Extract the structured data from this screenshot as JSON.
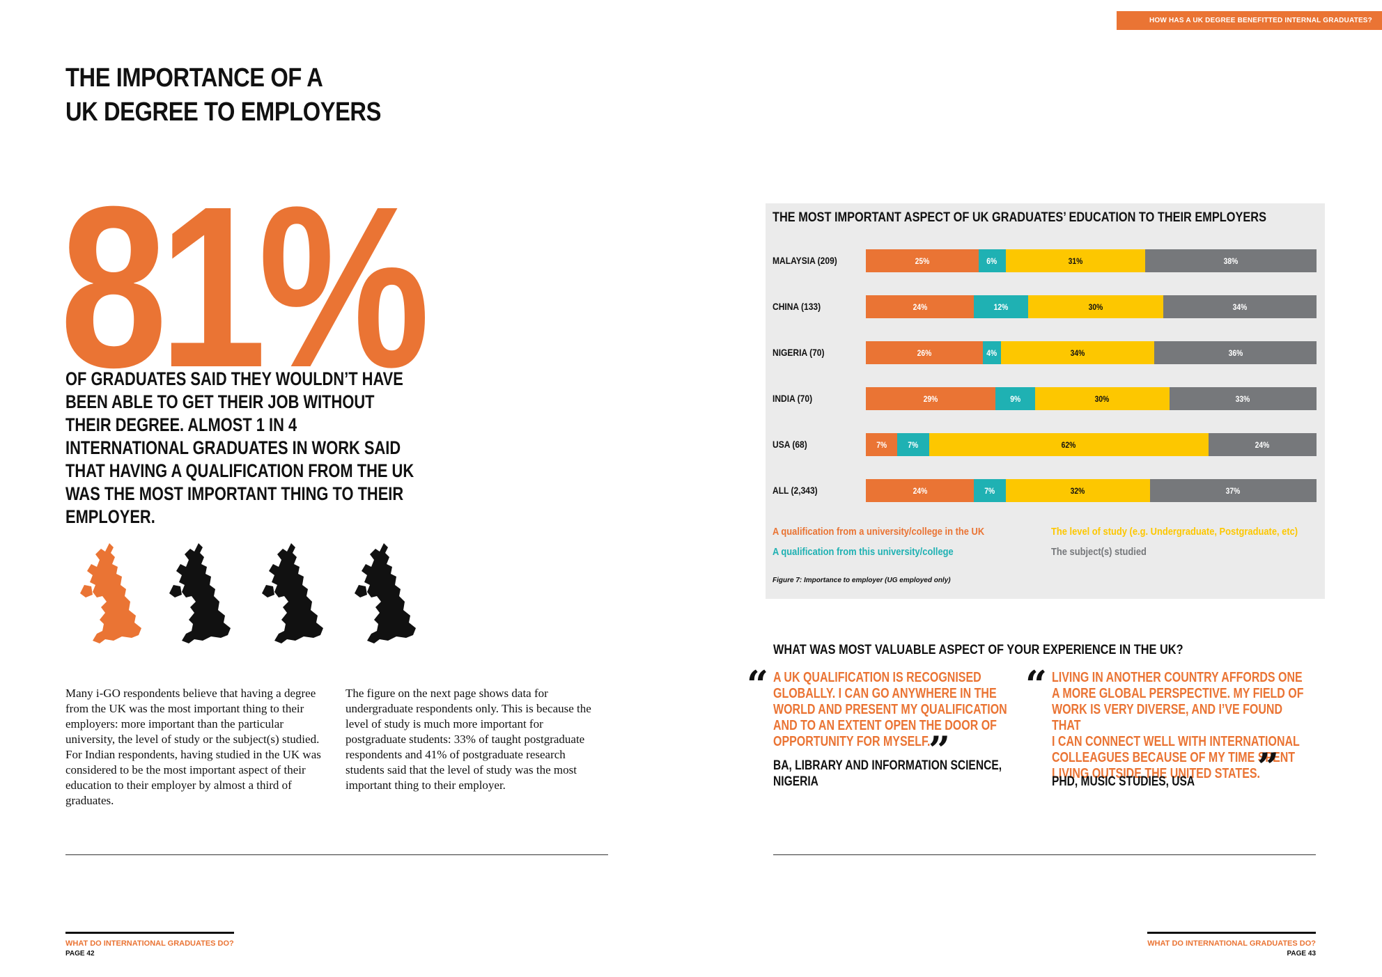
{
  "header": {
    "tab_label": "HOW HAS A UK DEGREE BENEFITTED INTERNAL GRADUATES?"
  },
  "left_page": {
    "title_line1": "THE IMPORTANCE OF A",
    "title_line2": "UK DEGREE TO EMPLOYERS",
    "stat_value": "81%",
    "stat_text": "OF GRADUATES SAID THEY WOULDN’T HAVE BEEN ABLE TO GET THEIR JOB WITHOUT THEIR DEGREE. ALMOST 1 IN 4 INTERNATIONAL GRADUATES IN WORK SAID THAT HAVING A QUALIFICATION FROM THE UK WAS THE MOST IMPORTANT THING TO THEIR EMPLOYER.",
    "maps": {
      "total": 4,
      "highlighted": 1,
      "highlight_color": "#ea7434",
      "base_color": "#111111"
    },
    "body_col1": "Many i-GO respondents believe that having a degree from the UK was the most important thing to their employers: more important than the particular university, the level of study or the subject(s) studied. For Indian respondents, having studied in the UK was considered to be the most important aspect of their education to their employer by almost a third of graduates.",
    "body_col2": "The figure on the next page shows data for undergraduate respondents only. This is because the level of study is much more important for postgraduate students: 33% of taught postgraduate respondents and 41% of postgraduate research students said that the level of study was the most important thing to their employer.",
    "footer_title": "WHAT DO INTERNATIONAL GRADUATES DO?",
    "footer_page": "PAGE 42"
  },
  "right_page": {
    "quotes_title": "WHAT WAS MOST VALUABLE ASPECT OF YOUR EXPERIENCE IN THE UK?",
    "quote1": {
      "lines": [
        "A UK QUALIFICATION IS RECOGNISED",
        "GLOBALLY. I CAN GO ANYWHERE IN THE",
        "WORLD AND PRESENT MY QUALIFICATION",
        "AND TO AN EXTENT OPEN THE DOOR OF",
        "OPPORTUNITY FOR MYSELF."
      ],
      "source_line1": "BA, LIBRARY AND INFORMATION SCIENCE,",
      "source_line2": "NIGERIA"
    },
    "quote2": {
      "lines": [
        "LIVING IN ANOTHER COUNTRY AFFORDS ONE",
        "A MORE GLOBAL PERSPECTIVE. MY FIELD OF",
        "WORK IS VERY DIVERSE, AND I’VE FOUND THAT",
        "I CAN CONNECT WELL WITH INTERNATIONAL",
        "COLLEAGUES BECAUSE OF MY TIME SPENT",
        "LIVING OUTSIDE THE UNITED STATES."
      ],
      "source_line1": "PHD, MUSIC STUDIES, USA"
    },
    "footer_title": "WHAT DO INTERNATIONAL GRADUATES DO?",
    "footer_page": "PAGE 43"
  },
  "chart_data": {
    "type": "bar",
    "stacked": true,
    "orientation": "horizontal",
    "title": "THE MOST IMPORTANT ASPECT OF UK GRADUATES’ EDUCATION TO THEIR EMPLOYERS",
    "categories": [
      "MALAYSIA (209)",
      "CHINA (133)",
      "NIGERIA (70)",
      "INDIA (70)",
      "USA (68)",
      "ALL (2,343)"
    ],
    "series": [
      {
        "name": "A qualification from a university/college in the UK",
        "color": "#ea7434",
        "values": [
          25,
          24,
          26,
          29,
          7,
          24
        ]
      },
      {
        "name": "A qualification from this university/college",
        "color": "#1fb1b3",
        "values": [
          6,
          12,
          4,
          9,
          7,
          7
        ]
      },
      {
        "name": "The level of study (e.g. Undergraduate, Postgraduate, etc)",
        "color": "#fdc700",
        "values": [
          31,
          30,
          34,
          30,
          62,
          32
        ]
      },
      {
        "name": "The subject(s) studied",
        "color": "#76787b",
        "values": [
          38,
          34,
          36,
          33,
          24,
          37
        ]
      }
    ],
    "value_suffix": "%",
    "legend_position": "bottom",
    "caption": "Figure 7: Importance to employer (UG employed only)"
  }
}
